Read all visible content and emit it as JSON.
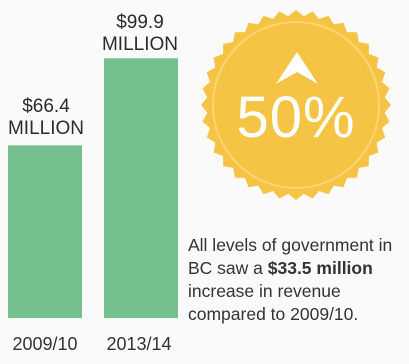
{
  "chart_data": {
    "type": "bar",
    "categories": [
      "2009/10",
      "2013/14"
    ],
    "values": [
      66.4,
      99.9
    ],
    "value_labels": [
      {
        "amount": "$66.4",
        "unit": "MILLION"
      },
      {
        "amount": "$99.9",
        "unit": "MILLION"
      }
    ],
    "bar_color": "#76c08f",
    "ylim": [
      0,
      110
    ]
  },
  "badge": {
    "text": "50%",
    "icon": "up-arrow-icon",
    "fill_color": "#f6c445",
    "ring_color": "#f9d673"
  },
  "callout": {
    "before": "All levels of government in BC saw a ",
    "highlight": "$33.5 million",
    "after": " increase in revenue compared to 2009/10."
  }
}
